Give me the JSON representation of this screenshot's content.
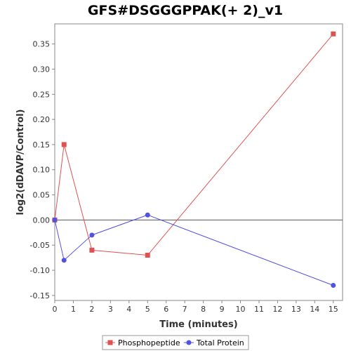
{
  "chart_data": {
    "type": "line",
    "title": "GFS#DSGGGPPAK(+ 2)_v1",
    "xlabel": "Time (minutes)",
    "ylabel": "log2(dDAVP/Control)",
    "xlim": [
      0,
      15.5
    ],
    "ylim": [
      -0.16,
      0.39
    ],
    "x_ticks": [
      0,
      1,
      2,
      3,
      4,
      5,
      6,
      7,
      8,
      9,
      10,
      11,
      12,
      13,
      14,
      15
    ],
    "y_ticks": [
      -0.15,
      -0.1,
      -0.05,
      0.0,
      0.05,
      0.1,
      0.15,
      0.2,
      0.25,
      0.3,
      0.35
    ],
    "x_tick_labels": [
      "0",
      "1",
      "2",
      "3",
      "4",
      "5",
      "6",
      "7",
      "8",
      "9",
      "10",
      "11",
      "12",
      "13",
      "14",
      "15"
    ],
    "y_tick_labels": [
      "-0.15",
      "-0.10",
      "-0.05",
      "0.00",
      "0.05",
      "0.10",
      "0.15",
      "0.20",
      "0.25",
      "0.30",
      "0.35"
    ],
    "zero_line": true,
    "grid": false,
    "legend_position": "bottom",
    "series": [
      {
        "name": "Phosphopeptide",
        "color": "#e05252",
        "marker": "square",
        "x": [
          0,
          0.5,
          2,
          5,
          15
        ],
        "y": [
          0.0,
          0.15,
          -0.06,
          -0.07,
          0.37
        ]
      },
      {
        "name": "Total Protein",
        "color": "#5252e0",
        "marker": "circle",
        "x": [
          0,
          0.5,
          2,
          5,
          15
        ],
        "y": [
          0.0,
          -0.08,
          -0.03,
          0.01,
          -0.13
        ]
      }
    ]
  }
}
